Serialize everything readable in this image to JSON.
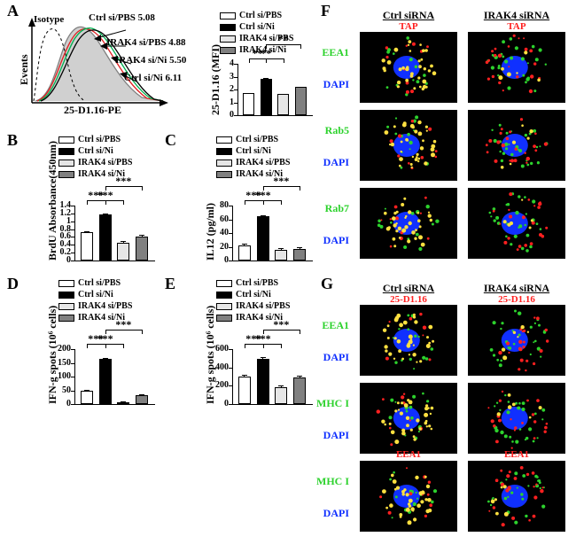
{
  "letters": {
    "A": "A",
    "B": "B",
    "C": "C",
    "D": "D",
    "E": "E",
    "F": "F",
    "G": "G"
  },
  "legend_keys": [
    {
      "key": "Ctrl si/PBS",
      "fill": "#ffffff"
    },
    {
      "key": "Ctrl si/Ni",
      "fill": "#000000"
    },
    {
      "key": "IRAK4 si/PBS",
      "fill": "#e6e6e6"
    },
    {
      "key": "IRAK4 si/Ni",
      "fill": "#808080"
    }
  ],
  "flow": {
    "x_label": "25-D1.16-PE",
    "y_label": "Events",
    "isotype_label": "Isotype",
    "curves": [
      {
        "name": "Ctrl si/PBS 5.08",
        "color": "#00b050"
      },
      {
        "name": "IRAK4 si/PBS 4.88",
        "color": "#e02020"
      },
      {
        "name": "IRAK4 si/Ni 5.50",
        "color": "#000000"
      },
      {
        "name": "Ctrl si/Ni 6.11",
        "color": "#808080"
      }
    ]
  },
  "chart_A": {
    "y_label": "25-D1.16 (MFI)",
    "y_max": 4,
    "y_tick": 1,
    "values": [
      1.72,
      2.85,
      1.65,
      2.18
    ],
    "errors": [
      0.03,
      0.05,
      0.03,
      0.03
    ],
    "sig": [
      {
        "from": 0,
        "to": 1,
        "lvl": 0,
        "stars": "**"
      },
      {
        "from": 0,
        "to": 2,
        "lvl": 0,
        "stars": "**"
      },
      {
        "from": 1,
        "to": 3,
        "lvl": 1,
        "stars": "**"
      }
    ]
  },
  "chart_B": {
    "y_label": "BrdU Absorbance(450nm)",
    "y_max": 1.4,
    "y_tick": 0.2,
    "values": [
      0.72,
      1.18,
      0.46,
      0.62
    ],
    "errors": [
      0.02,
      0.02,
      0.03,
      0.03
    ],
    "sig": [
      {
        "from": 0,
        "to": 1,
        "lvl": 0,
        "stars": "***"
      },
      {
        "from": 0,
        "to": 2,
        "lvl": 0,
        "stars": "***"
      },
      {
        "from": 1,
        "to": 3,
        "lvl": 1,
        "stars": "***"
      }
    ]
  },
  "chart_C": {
    "y_label": "IL12 (pg/ml)",
    "y_max": 80,
    "y_tick": 20,
    "values": [
      22,
      65,
      16,
      17
    ],
    "errors": [
      3,
      1,
      2,
      2
    ],
    "sig": [
      {
        "from": 0,
        "to": 1,
        "lvl": 0,
        "stars": "***"
      },
      {
        "from": 0,
        "to": 2,
        "lvl": 0,
        "stars": "***"
      },
      {
        "from": 1,
        "to": 3,
        "lvl": 1,
        "stars": "***"
      }
    ]
  },
  "chart_D": {
    "y_label": "IFN-g spots (10⁶ cells)",
    "y_max": 200,
    "y_tick": 50,
    "values": [
      48,
      163,
      7,
      32
    ],
    "errors": [
      5,
      5,
      3,
      5
    ],
    "sig": [
      {
        "from": 0,
        "to": 1,
        "lvl": 0,
        "stars": "***"
      },
      {
        "from": 0,
        "to": 2,
        "lvl": 0,
        "stars": "***"
      },
      {
        "from": 1,
        "to": 3,
        "lvl": 1,
        "stars": "***"
      }
    ]
  },
  "chart_E": {
    "y_label": "IFN-g spots (10⁶ cells)",
    "y_max": 600,
    "y_tick": 200,
    "values": [
      303,
      492,
      185,
      290
    ],
    "errors": [
      20,
      25,
      18,
      18
    ],
    "sig": [
      {
        "from": 0,
        "to": 1,
        "lvl": 0,
        "stars": "***"
      },
      {
        "from": 0,
        "to": 2,
        "lvl": 0,
        "stars": "***"
      },
      {
        "from": 1,
        "to": 3,
        "lvl": 1,
        "stars": "***"
      }
    ]
  },
  "micro_F": {
    "cols": [
      "Ctrl siRNA",
      "IRAK4 siRNA"
    ],
    "channel_red": "TAP",
    "channel_blue": "DAPI",
    "rows": [
      "EEA1",
      "Rab5",
      "Rab7"
    ],
    "green": "#2dd22d",
    "red": "#ff2020",
    "yellow": "#ffe040",
    "blue": "#1030ff"
  },
  "micro_G": {
    "cols": [
      "Ctrl siRNA",
      "IRAK4 siRNA"
    ],
    "channel_red": "25-D1.16",
    "channel_blue": "DAPI",
    "rows": [
      "EEA1",
      "MHC I",
      "MHC I"
    ],
    "row_red_override": {
      "2": "EEA1"
    },
    "green": "#2dd22d",
    "red": "#ff2020",
    "yellow": "#ffe040",
    "blue": "#1030ff"
  }
}
